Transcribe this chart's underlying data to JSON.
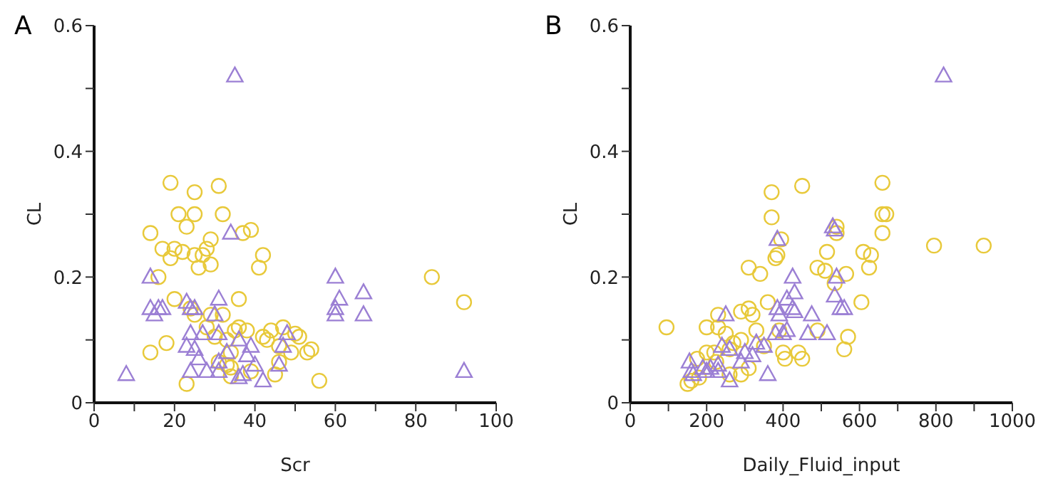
{
  "chart_data": [
    {
      "type": "scatter",
      "title": "A",
      "xlabel": "Scr",
      "ylabel": "CL",
      "xlim": [
        0,
        100
      ],
      "ylim": [
        0,
        0.6
      ],
      "xticks": [
        0,
        {
          "value": 10,
          "label": null
        },
        20,
        {
          "value": 30,
          "label": null
        },
        40,
        {
          "value": 50,
          "label": null
        },
        60,
        {
          "value": 70,
          "label": null
        },
        80,
        {
          "value": 90,
          "label": null
        },
        100
      ],
      "yticks": [
        0,
        {
          "value": 0.1,
          "label": null
        },
        0.2,
        {
          "value": 0.3,
          "label": null
        },
        0.4,
        {
          "value": 0.5,
          "label": null
        },
        0.6
      ],
      "grid": false,
      "legend": false,
      "series": [
        {
          "color": "#e8c93a",
          "marker": "circle",
          "x": [
            19,
            31,
            25,
            21,
            25,
            32,
            23,
            14,
            37,
            39,
            29,
            28,
            20,
            17,
            22,
            25,
            27,
            19,
            29,
            26,
            42,
            41,
            16,
            20,
            36,
            24,
            25,
            29,
            32,
            28,
            35,
            30,
            33,
            36,
            38,
            44,
            47,
            50,
            51,
            42,
            43,
            46,
            49,
            53,
            54,
            14,
            18,
            34,
            31,
            33,
            34,
            34,
            39,
            45,
            46,
            23,
            56,
            84,
            92
          ],
          "values": [
            0.35,
            0.345,
            0.335,
            0.3,
            0.3,
            0.3,
            0.28,
            0.27,
            0.27,
            0.275,
            0.26,
            0.245,
            0.245,
            0.245,
            0.24,
            0.235,
            0.235,
            0.23,
            0.22,
            0.215,
            0.235,
            0.215,
            0.2,
            0.165,
            0.165,
            0.15,
            0.14,
            0.14,
            0.14,
            0.12,
            0.115,
            0.105,
            0.1,
            0.12,
            0.115,
            0.115,
            0.12,
            0.11,
            0.105,
            0.105,
            0.1,
            0.09,
            0.08,
            0.08,
            0.085,
            0.08,
            0.095,
            0.08,
            0.065,
            0.06,
            0.056,
            0.042,
            0.05,
            0.045,
            0.065,
            0.03,
            0.035,
            0.2,
            0.16
          ]
        },
        {
          "color": "#9b7fd4",
          "marker": "triangle",
          "x": [
            35,
            34,
            14,
            16,
            14,
            15,
            17,
            8,
            23,
            24,
            25,
            31,
            30,
            24,
            23,
            25,
            27,
            31,
            36,
            39,
            26,
            24,
            28,
            31,
            31,
            33,
            38,
            40,
            37,
            36,
            42,
            46,
            47,
            48,
            60,
            61,
            60,
            60,
            67,
            67,
            92
          ],
          "values": [
            0.52,
            0.27,
            0.2,
            0.15,
            0.15,
            0.14,
            0.15,
            0.045,
            0.16,
            0.15,
            0.15,
            0.165,
            0.14,
            0.11,
            0.09,
            0.085,
            0.11,
            0.11,
            0.1,
            0.09,
            0.07,
            0.05,
            0.05,
            0.05,
            0.065,
            0.08,
            0.075,
            0.06,
            0.045,
            0.04,
            0.035,
            0.06,
            0.09,
            0.11,
            0.2,
            0.165,
            0.15,
            0.14,
            0.175,
            0.14,
            0.05
          ]
        }
      ]
    },
    {
      "type": "scatter",
      "title": "B",
      "xlabel": "Daily_Fluid_input",
      "ylabel": "CL",
      "xlim": [
        0,
        1000
      ],
      "ylim": [
        0,
        0.6
      ],
      "xticks": [
        0,
        {
          "value": 100,
          "label": null
        },
        200,
        {
          "value": 300,
          "label": null
        },
        400,
        {
          "value": 500,
          "label": null
        },
        600,
        {
          "value": 700,
          "label": null
        },
        800,
        {
          "value": 900,
          "label": null
        },
        1000
      ],
      "yticks": [
        0,
        {
          "value": 0.1,
          "label": null
        },
        0.2,
        {
          "value": 0.3,
          "label": null
        },
        0.4,
        {
          "value": 0.5,
          "label": null
        },
        0.6
      ],
      "grid": false,
      "legend": false,
      "series": [
        {
          "color": "#e8c93a",
          "marker": "circle",
          "x": [
            660,
            450,
            370,
            370,
            660,
            670,
            540,
            660,
            540,
            395,
            795,
            925,
            515,
            610,
            630,
            385,
            380,
            490,
            510,
            310,
            340,
            565,
            625,
            535,
            360,
            605,
            290,
            310,
            320,
            230,
            95,
            200,
            230,
            250,
            270,
            290,
            330,
            390,
            490,
            570,
            200,
            220,
            260,
            350,
            400,
            440,
            405,
            450,
            560,
            310,
            290,
            260,
            180,
            150,
            160,
            175,
            225
          ],
          "values": [
            0.35,
            0.345,
            0.335,
            0.295,
            0.3,
            0.3,
            0.28,
            0.27,
            0.27,
            0.26,
            0.25,
            0.25,
            0.24,
            0.24,
            0.235,
            0.235,
            0.23,
            0.215,
            0.21,
            0.215,
            0.205,
            0.205,
            0.215,
            0.19,
            0.16,
            0.16,
            0.145,
            0.15,
            0.14,
            0.14,
            0.12,
            0.12,
            0.12,
            0.11,
            0.095,
            0.1,
            0.115,
            0.115,
            0.115,
            0.105,
            0.08,
            0.08,
            0.085,
            0.09,
            0.08,
            0.08,
            0.07,
            0.07,
            0.085,
            0.055,
            0.045,
            0.045,
            0.04,
            0.03,
            0.035,
            0.07,
            0.065
          ]
        },
        {
          "color": "#9b7fd4",
          "marker": "triangle",
          "x": [
            820,
            530,
            385,
            535,
            425,
            540,
            430,
            410,
            425,
            535,
            550,
            560,
            250,
            385,
            390,
            430,
            475,
            410,
            400,
            380,
            465,
            515,
            330,
            350,
            300,
            320,
            240,
            260,
            155,
            160,
            165,
            190,
            200,
            210,
            230,
            230,
            290,
            360,
            260
          ],
          "values": [
            0.52,
            0.28,
            0.26,
            0.275,
            0.2,
            0.2,
            0.175,
            0.165,
            0.15,
            0.17,
            0.15,
            0.15,
            0.14,
            0.15,
            0.14,
            0.145,
            0.14,
            0.115,
            0.11,
            0.11,
            0.11,
            0.11,
            0.095,
            0.09,
            0.08,
            0.075,
            0.09,
            0.085,
            0.065,
            0.05,
            0.045,
            0.055,
            0.05,
            0.055,
            0.06,
            0.05,
            0.065,
            0.045,
            0.035
          ]
        }
      ]
    }
  ]
}
